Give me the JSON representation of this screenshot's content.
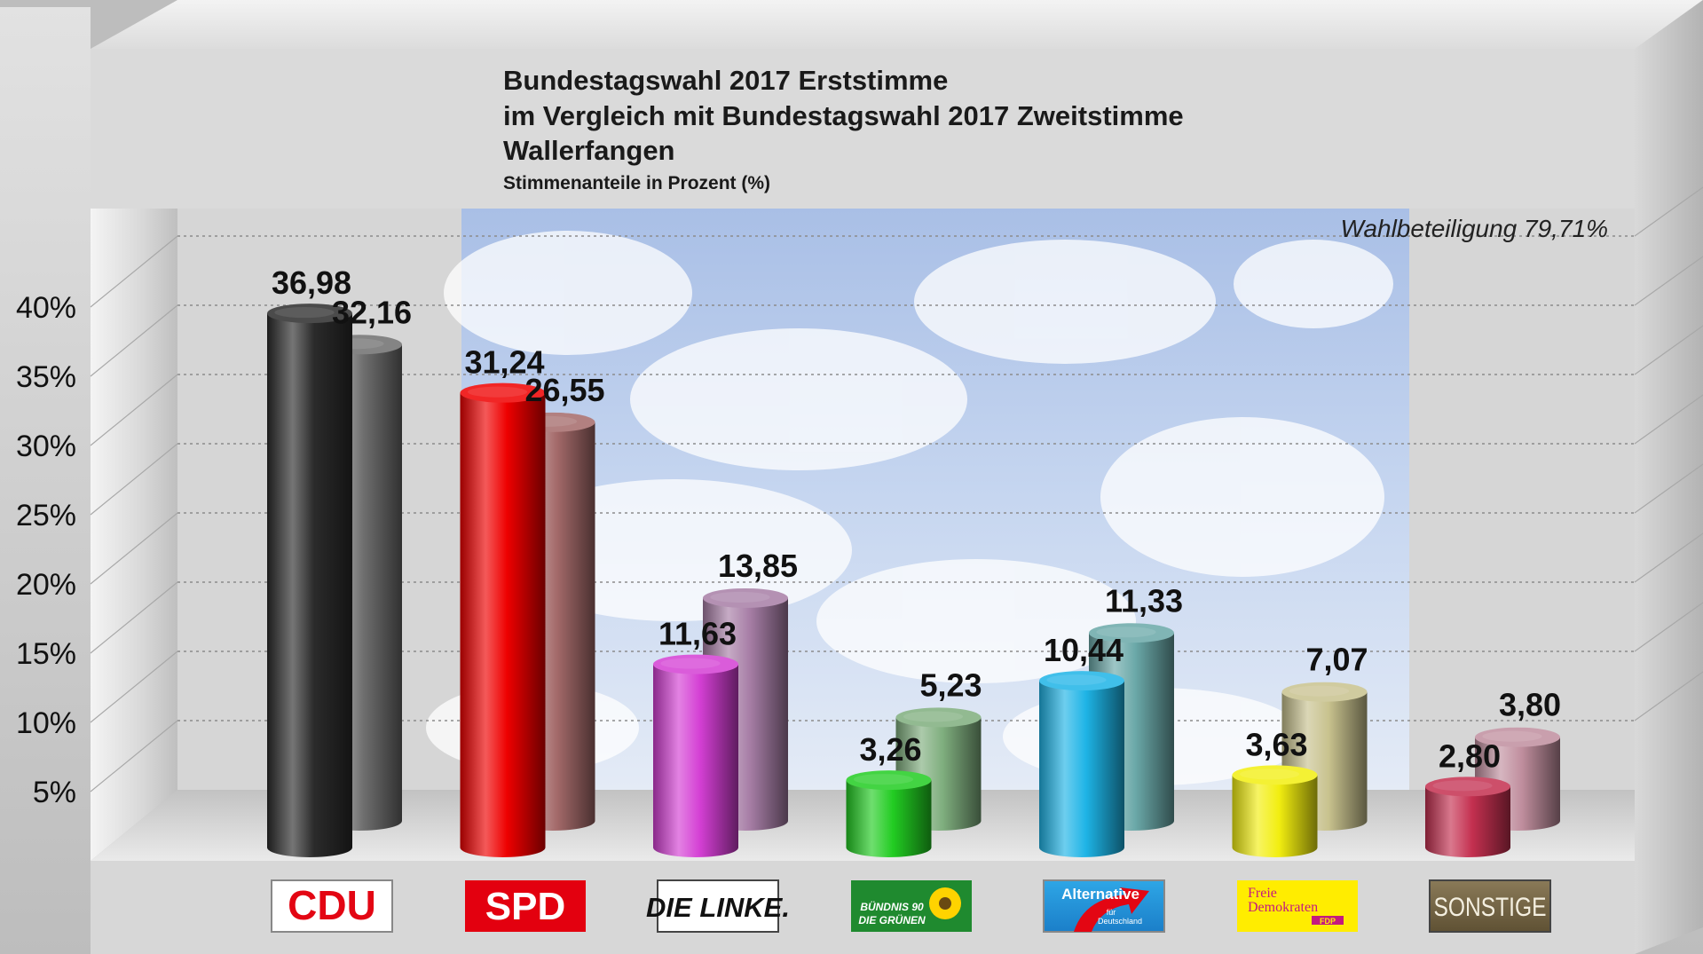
{
  "title_lines": [
    "Bundestagswahl 2017 Erststimme",
    "im Vergleich mit Bundestagswahl 2017 Zweitstimme",
    "Wallerfangen"
  ],
  "subtitle": "Stimmenanteile in Prozent (%)",
  "turnout_label": "Wahlbeteiligung 79,71%",
  "logos": {
    "cdu": "CDU",
    "spd": "SPD",
    "linke": "DIE LINKE.",
    "gruene_1": "BÜNDNIS 90",
    "gruene_2": "DIE GRÜNEN",
    "afd_1": "Alternative",
    "afd_2": "für",
    "afd_3": "Deutschland",
    "fdp_1": "Freie",
    "fdp_2": "Demokraten",
    "fdp_3": "FDP",
    "sonstige": "SONSTIGE"
  },
  "chart_data": {
    "type": "bar",
    "categories": [
      "CDU",
      "SPD",
      "DIE LINKE.",
      "GRÜNE",
      "AfD",
      "FDP",
      "SONSTIGE"
    ],
    "series": [
      {
        "values": [
          36.98,
          31.24,
          11.63,
          3.26,
          10.44,
          3.63,
          2.8
        ]
      },
      {
        "values": [
          32.16,
          26.55,
          13.85,
          5.23,
          11.33,
          7.07,
          3.8
        ]
      }
    ],
    "value_labels_first": [
      "36,98",
      "31,24",
      "11,63",
      "3,26",
      "10,44",
      "3,63",
      "2,80"
    ],
    "value_labels_second": [
      "32,16",
      "26,55",
      "13,85",
      "5,23",
      "11,33",
      "7,07",
      "3,80"
    ],
    "ytick_labels": [
      "5%",
      "10%",
      "15%",
      "20%",
      "25%",
      "30%",
      "35%",
      "40%"
    ],
    "ylim": [
      0,
      40
    ],
    "grid": true,
    "colors_first": [
      "#2b2b2b",
      "#ee0000",
      "#d43fd4",
      "#22cc22",
      "#1eb4e6",
      "#f2ee10",
      "#c43050"
    ],
    "colors_second": [
      "#6e6e6e",
      "#a46a6a",
      "#a77ea6",
      "#7fae7e",
      "#6aa8a8",
      "#c8c28e",
      "#c08e9e"
    ]
  }
}
